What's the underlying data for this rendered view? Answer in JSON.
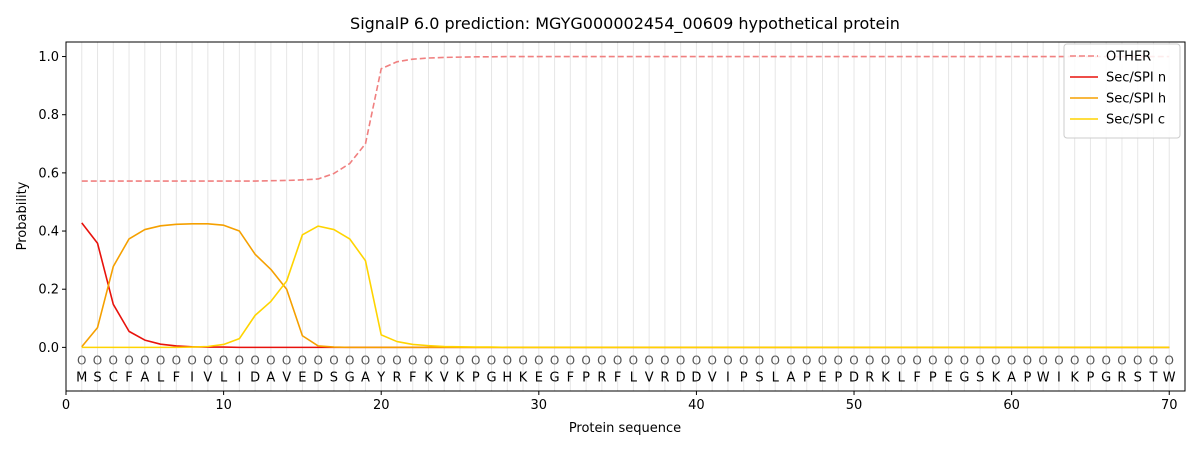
{
  "chart_data": {
    "type": "line",
    "title": "SignalP 6.0 prediction: MGYG000002454_00609 hypothetical protein",
    "xlabel": "Protein sequence",
    "ylabel": "Probability",
    "xlim": [
      0,
      71
    ],
    "ylim": [
      -0.15,
      1.05
    ],
    "xticks": [
      0,
      10,
      20,
      30,
      40,
      50,
      60,
      70
    ],
    "yticks": [
      0.0,
      0.2,
      0.4,
      0.6,
      0.8,
      1.0
    ],
    "ytick_labels": [
      "0.0",
      "0.2",
      "0.4",
      "0.6",
      "0.8",
      "1.0"
    ],
    "grid": "vertical lines at each residue",
    "legend_position": "top-right",
    "sequence": [
      "M",
      "S",
      "C",
      "F",
      "A",
      "L",
      "F",
      "I",
      "V",
      "L",
      "I",
      "D",
      "A",
      "V",
      "E",
      "D",
      "S",
      "G",
      "A",
      "Y",
      "R",
      "F",
      "K",
      "V",
      "K",
      "P",
      "G",
      "H",
      "K",
      "E",
      "G",
      "F",
      "P",
      "R",
      "F",
      "L",
      "V",
      "R",
      "D",
      "D",
      "V",
      "I",
      "P",
      "S",
      "L",
      "A",
      "P",
      "E",
      "P",
      "D",
      "R",
      "K",
      "L",
      "F",
      "P",
      "E",
      "G",
      "S",
      "K",
      "A",
      "P",
      "W",
      "I",
      "K",
      "P",
      "G",
      "R",
      "S",
      "T",
      "W"
    ],
    "annotation": [
      "O",
      "O",
      "O",
      "O",
      "O",
      "O",
      "O",
      "O",
      "O",
      "O",
      "O",
      "O",
      "O",
      "O",
      "O",
      "O",
      "O",
      "O",
      "O",
      "O",
      "O",
      "O",
      "O",
      "O",
      "O",
      "O",
      "O",
      "O",
      "O",
      "O",
      "O",
      "O",
      "O",
      "O",
      "O",
      "O",
      "O",
      "O",
      "O",
      "O",
      "O",
      "O",
      "O",
      "O",
      "O",
      "O",
      "O",
      "O",
      "O",
      "O",
      "O",
      "O",
      "O",
      "O",
      "O",
      "O",
      "O",
      "O",
      "O",
      "O",
      "O",
      "O",
      "O",
      "O",
      "O",
      "O",
      "O",
      "O",
      "O",
      "O"
    ],
    "series": [
      {
        "name": "OTHER",
        "color": "#f08080",
        "dash": "dashed",
        "values": [
          0.572,
          0.572,
          0.572,
          0.572,
          0.572,
          0.572,
          0.572,
          0.572,
          0.572,
          0.572,
          0.572,
          0.572,
          0.573,
          0.574,
          0.576,
          0.579,
          0.598,
          0.632,
          0.7,
          0.958,
          0.982,
          0.991,
          0.995,
          0.997,
          0.998,
          0.999,
          0.999,
          1,
          1,
          1,
          1,
          1,
          1,
          1,
          1,
          1,
          1,
          1,
          1,
          1,
          1,
          1,
          1,
          1,
          1,
          1,
          1,
          1,
          1,
          1,
          1,
          1,
          1,
          1,
          1,
          1,
          1,
          1,
          1,
          1,
          1,
          1,
          1,
          1,
          1,
          1,
          1,
          1,
          1,
          1
        ]
      },
      {
        "name": "Sec/SPI n",
        "color": "#e8120c",
        "dash": "solid",
        "values": [
          0.428,
          0.358,
          0.148,
          0.055,
          0.025,
          0.011,
          0.005,
          0.002,
          0.001,
          0.001,
          0,
          0,
          0,
          0,
          0,
          0,
          0,
          0,
          0,
          0,
          0,
          0,
          0,
          0,
          0,
          0,
          0,
          0,
          0,
          0,
          0,
          0,
          0,
          0,
          0,
          0,
          0,
          0,
          0,
          0,
          0,
          0,
          0,
          0,
          0,
          0,
          0,
          0,
          0,
          0,
          0,
          0,
          0,
          0,
          0,
          0,
          0,
          0,
          0,
          0,
          0,
          0,
          0,
          0,
          0,
          0,
          0,
          0,
          0,
          0
        ]
      },
      {
        "name": "Sec/SPI h",
        "color": "#f5a000",
        "dash": "solid",
        "values": [
          0.002,
          0.068,
          0.278,
          0.373,
          0.405,
          0.418,
          0.423,
          0.425,
          0.425,
          0.42,
          0.4,
          0.32,
          0.268,
          0.2,
          0.04,
          0.005,
          0.001,
          0,
          0,
          0,
          0,
          0,
          0,
          0,
          0,
          0,
          0,
          0,
          0,
          0,
          0,
          0,
          0,
          0,
          0,
          0,
          0,
          0,
          0,
          0,
          0,
          0,
          0,
          0,
          0,
          0,
          0,
          0,
          0,
          0,
          0,
          0,
          0,
          0,
          0,
          0,
          0,
          0,
          0,
          0,
          0,
          0,
          0,
          0,
          0,
          0,
          0,
          0,
          0,
          0
        ]
      },
      {
        "name": "Sec/SPI c",
        "color": "#ffd400",
        "dash": "solid",
        "values": [
          0,
          0,
          0,
          0,
          0,
          0,
          0,
          0.001,
          0.003,
          0.01,
          0.03,
          0.11,
          0.158,
          0.228,
          0.387,
          0.417,
          0.405,
          0.373,
          0.298,
          0.043,
          0.02,
          0.01,
          0.006,
          0.003,
          0.002,
          0.001,
          0.001,
          0,
          0,
          0,
          0,
          0,
          0,
          0,
          0,
          0,
          0,
          0,
          0,
          0,
          0,
          0,
          0,
          0,
          0,
          0,
          0,
          0,
          0,
          0,
          0,
          0,
          0,
          0,
          0,
          0,
          0,
          0,
          0,
          0,
          0,
          0,
          0,
          0,
          0,
          0,
          0,
          0,
          0,
          0
        ]
      }
    ]
  }
}
